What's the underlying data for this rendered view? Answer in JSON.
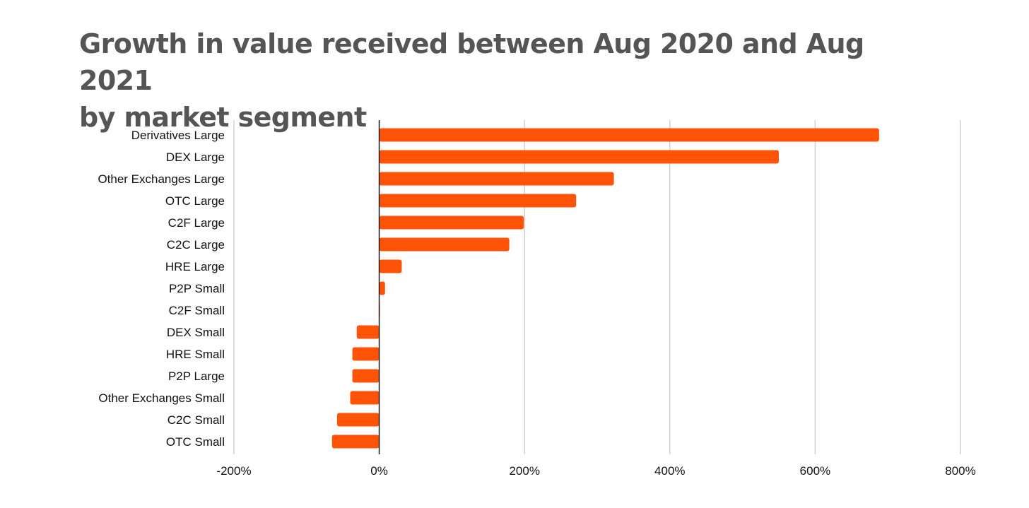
{
  "chart_data": {
    "type": "bar",
    "orientation": "horizontal",
    "title": "Growth in value received between Aug 2020 and Aug 2021 by market segment",
    "title_lines": [
      "Growth in value received between Aug 2020 and Aug 2021",
      "by market segment"
    ],
    "categories": [
      "Derivatives Large",
      "DEX Large",
      "Other Exchanges Large",
      "OTC Large",
      "C2F Large",
      "C2C Large",
      "HRE Large",
      "P2P Small",
      "C2F Small",
      "DEX Small",
      "HRE Small",
      "P2P Large",
      "Other Exchanges Small",
      "C2C Small",
      "OTC Small"
    ],
    "values": [
      688,
      550,
      323,
      271,
      199,
      179,
      31,
      8,
      1,
      -31,
      -37,
      -37,
      -40,
      -58,
      -65
    ],
    "xlim": [
      -200,
      800
    ],
    "xticks": [
      -200,
      0,
      200,
      400,
      600,
      800
    ],
    "xtick_labels": [
      "-200%",
      "0%",
      "200%",
      "400%",
      "600%",
      "800%"
    ],
    "grid": true,
    "bar_color": "#ff5307",
    "zero_line_color": "#222222",
    "grid_color": "#cccccc",
    "title_color": "#555555"
  }
}
